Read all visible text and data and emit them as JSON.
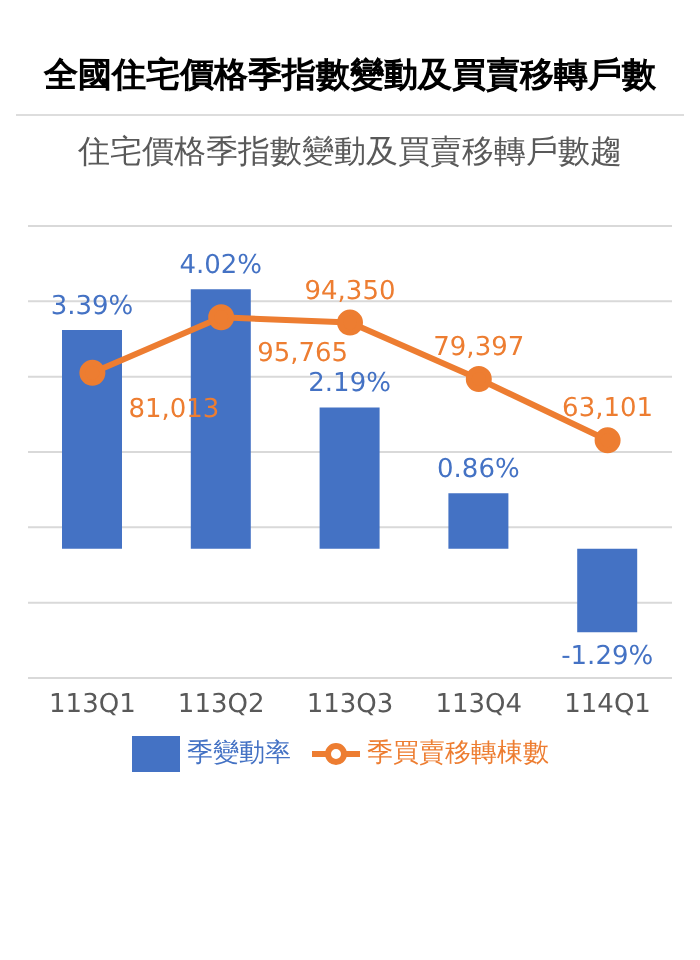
{
  "chart_data": {
    "type": "bar",
    "title": "全國住宅價格季指數變動及買賣移轉戶數",
    "subtitle": "住宅價格季指數變動及買賣移轉戶數趨",
    "categories": [
      "113Q1",
      "113Q2",
      "113Q3",
      "113Q4",
      "114Q1"
    ],
    "series": [
      {
        "name": "季變動率",
        "color": "#4472c4",
        "values": [
          3.39,
          4.02,
          2.19,
          0.86,
          -1.29
        ],
        "value_labels": [
          "3.39%",
          "4.02%",
          "2.19%",
          "0.86%",
          "-1.29%"
        ]
      },
      {
        "name": "季買賣移轉棟數",
        "type": "line",
        "axis": "y2",
        "color": "#ed7d31",
        "values": [
          81013,
          95765,
          94350,
          79397,
          63101
        ],
        "value_labels": [
          "81,013",
          "95,765",
          "94,350",
          "79,397",
          "63,101"
        ]
      }
    ],
    "ylim": [
      -2,
      5
    ],
    "y2lim": [
      0,
      120000
    ],
    "y2ticks": [
      {
        "value": 0,
        "label": null
      },
      {
        "value": 20000,
        "label": null
      },
      {
        "value": 40000,
        "label": null
      },
      {
        "value": 60000,
        "label": null
      },
      {
        "value": 80000,
        "label": null
      },
      {
        "value": 100000,
        "label": null
      },
      {
        "value": 120000,
        "label": null
      }
    ],
    "tick_labels": "x",
    "grid": "y",
    "legend": "bottom",
    "marker": "circle",
    "line_style": "solid"
  }
}
